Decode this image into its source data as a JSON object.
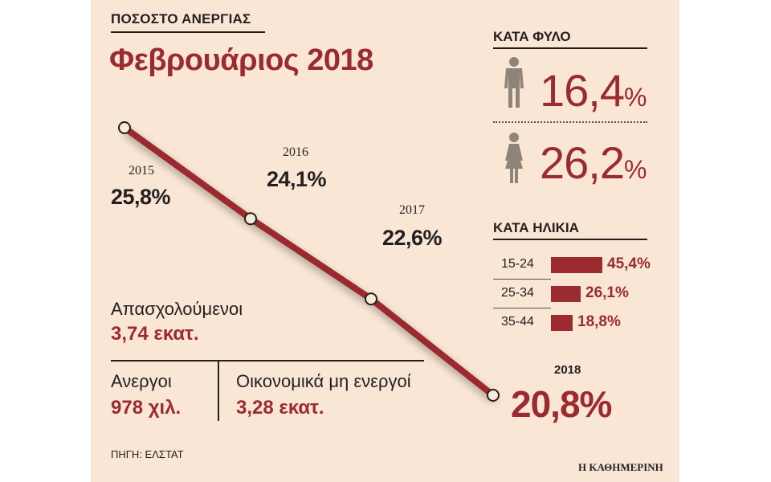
{
  "kicker": "ΠΟΣΟΣΤΟ ΑΝΕΡΓΙΑΣ",
  "headline": "Φεβρουάριος 2018",
  "chart_data": {
    "type": "line",
    "x": [
      "2015",
      "2016",
      "2017",
      "2018"
    ],
    "values": [
      25.8,
      24.1,
      22.6,
      20.8
    ],
    "labels": [
      "25,8%",
      "24,1%",
      "22,6%",
      "20,8%"
    ],
    "color": "#9b2b2e"
  },
  "stats": {
    "employed_label": "Απασχολούμενοι",
    "employed_value": "3,74 εκατ.",
    "unemployed_label": "Ανεργοι",
    "unemployed_value": "978 χιλ.",
    "inactive_label": "Οικονομικά μη ενεργοί",
    "inactive_value": "3,28 εκατ."
  },
  "gender": {
    "title": "ΚΑΤΑ ΦΥΛΟ",
    "male": {
      "value": "16,4",
      "unit": "%",
      "icon": "man-icon"
    },
    "female": {
      "value": "26,2",
      "unit": "%",
      "icon": "woman-icon"
    }
  },
  "age": {
    "title": "ΚΑΤΑ ΗΛΙΚΙΑ",
    "groups": [
      {
        "label": "15-24",
        "value": 45.4,
        "text": "45,4%"
      },
      {
        "label": "25-34",
        "value": 26.1,
        "text": "26,1%"
      },
      {
        "label": "35-44",
        "value": 18.8,
        "text": "18,8%"
      }
    ]
  },
  "source": "ΠΗΓΗ: ΕΛΣΤΑΤ",
  "brand": "Η ΚΑΘΗΜΕΡΙΝΗ",
  "accent": "#9b2b2e",
  "background": "#f9e6d5"
}
